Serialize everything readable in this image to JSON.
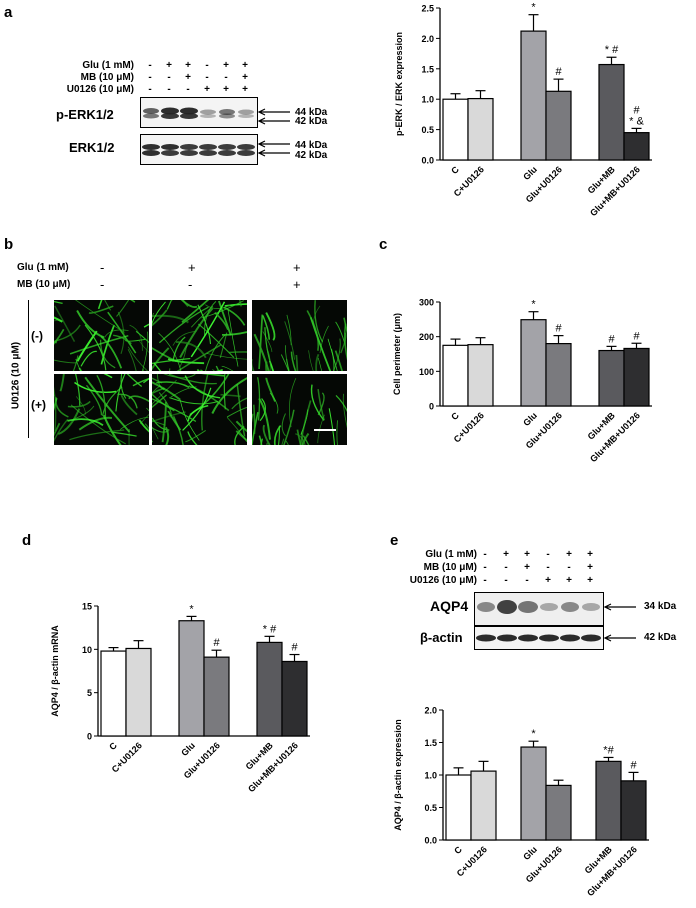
{
  "panels": {
    "a": {
      "label": "a",
      "treatments": [
        {
          "name": "Glu (1 mM)",
          "signs": [
            "-",
            "+",
            "+",
            "-",
            "+",
            "+"
          ]
        },
        {
          "name": "MB (10 μM)",
          "signs": [
            "-",
            "-",
            "+",
            "-",
            "-",
            "+"
          ]
        },
        {
          "name": "U0126 (10 μM)",
          "signs": [
            "-",
            "-",
            "-",
            "+",
            "+",
            "+"
          ]
        }
      ],
      "blots": [
        {
          "name": "p-ERK1/2",
          "kda": [
            "44 kDa",
            "42 kDa"
          ]
        },
        {
          "name": "ERK1/2",
          "kda": [
            "44 kDa",
            "42 kDa"
          ]
        }
      ]
    },
    "b": {
      "label": "b",
      "treatments": [
        {
          "name": "Glu (1 mM)",
          "signs": [
            "-",
            "+",
            "+"
          ]
        },
        {
          "name": "MB (10 μM)",
          "signs": [
            "-",
            "-",
            "+"
          ]
        }
      ],
      "side_label": "U0126 (10 μM)",
      "row_labels": [
        "(-)",
        "(+)"
      ]
    },
    "c": {
      "label": "c"
    },
    "d": {
      "label": "d"
    },
    "e": {
      "label": "e",
      "treatments": [
        {
          "name": "Glu (1 mM)",
          "signs": [
            "-",
            "+",
            "+",
            "-",
            "+",
            "+"
          ]
        },
        {
          "name": "MB (10 μM)",
          "signs": [
            "-",
            "-",
            "+",
            "-",
            "-",
            "+"
          ]
        },
        {
          "name": "U0126 (10 μM)",
          "signs": [
            "-",
            "-",
            "-",
            "+",
            "+",
            "+"
          ]
        }
      ],
      "blots": [
        {
          "name": "AQP4",
          "kda": [
            "34 kDa"
          ]
        },
        {
          "name": "β-actin",
          "kda": [
            "42 kDa"
          ]
        }
      ]
    }
  },
  "chart_data": [
    {
      "id": "a",
      "type": "bar",
      "categories": [
        "C",
        "C+U0126",
        "Glu",
        "Glu+U0126",
        "Glu+MB",
        "Glu+MB+U0126"
      ],
      "values": [
        1.0,
        1.01,
        2.12,
        1.13,
        1.57,
        0.45
      ],
      "errors": [
        0.09,
        0.13,
        0.27,
        0.2,
        0.12,
        0.07
      ],
      "annotations": [
        "",
        "",
        "*",
        "#",
        "* #",
        "#|* &"
      ],
      "colors": [
        "#ffffff",
        "#d9d9d9",
        "#a3a3a8",
        "#7a7a7e",
        "#5a5a5e",
        "#2e2e30"
      ],
      "ylabel": "p-ERK / ERK expression",
      "ylim": [
        0,
        2.5
      ],
      "yticks": [
        "0.0",
        "0.5",
        "1.0",
        "1.5",
        "2.0",
        "2.5"
      ]
    },
    {
      "id": "c",
      "type": "bar",
      "categories": [
        "C",
        "C+U0126",
        "Glu",
        "Glu+U0126",
        "Glu+MB",
        "Glu+MB+U0126"
      ],
      "values": [
        175,
        177,
        249,
        180,
        160,
        166
      ],
      "errors": [
        18,
        20,
        23,
        23,
        12,
        15
      ],
      "annotations": [
        "",
        "",
        "*",
        "#",
        "#",
        "#"
      ],
      "colors": [
        "#ffffff",
        "#d9d9d9",
        "#a3a3a8",
        "#7a7a7e",
        "#5a5a5e",
        "#2e2e30"
      ],
      "ylabel": "Cell perimeter (μm)",
      "ylim": [
        0,
        300
      ],
      "yticks": [
        "0",
        "100",
        "200",
        "300"
      ]
    },
    {
      "id": "d",
      "type": "bar",
      "categories": [
        "C",
        "C+U0126",
        "Glu",
        "Glu+U0126",
        "Glu+MB",
        "Glu+MB+U0126"
      ],
      "values": [
        9.8,
        10.1,
        13.3,
        9.1,
        10.8,
        8.6
      ],
      "errors": [
        0.4,
        0.9,
        0.5,
        0.8,
        0.7,
        0.8
      ],
      "annotations": [
        "",
        "",
        "*",
        "#",
        "* #",
        "#"
      ],
      "colors": [
        "#ffffff",
        "#d9d9d9",
        "#a3a3a8",
        "#7a7a7e",
        "#5a5a5e",
        "#2e2e30"
      ],
      "ylabel": "AQP4 / β-actin mRNA",
      "ylim": [
        0,
        15
      ],
      "yticks": [
        "0",
        "5",
        "10",
        "15"
      ]
    },
    {
      "id": "e",
      "type": "bar",
      "categories": [
        "C",
        "C+U0126",
        "Glu",
        "Glu+U0126",
        "Glu+MB",
        "Glu+MB+U0126"
      ],
      "values": [
        1.0,
        1.06,
        1.43,
        0.84,
        1.21,
        0.91
      ],
      "errors": [
        0.11,
        0.15,
        0.09,
        0.08,
        0.06,
        0.13
      ],
      "annotations": [
        "",
        "",
        "*",
        "",
        "*#",
        "#"
      ],
      "colors": [
        "#ffffff",
        "#d9d9d9",
        "#a3a3a8",
        "#7a7a7e",
        "#5a5a5e",
        "#2e2e30"
      ],
      "ylabel": "AQP4 / β-actin expression",
      "ylim": [
        0,
        2.0
      ],
      "yticks": [
        "0.0",
        "0.5",
        "1.0",
        "1.5",
        "2.0"
      ]
    }
  ]
}
